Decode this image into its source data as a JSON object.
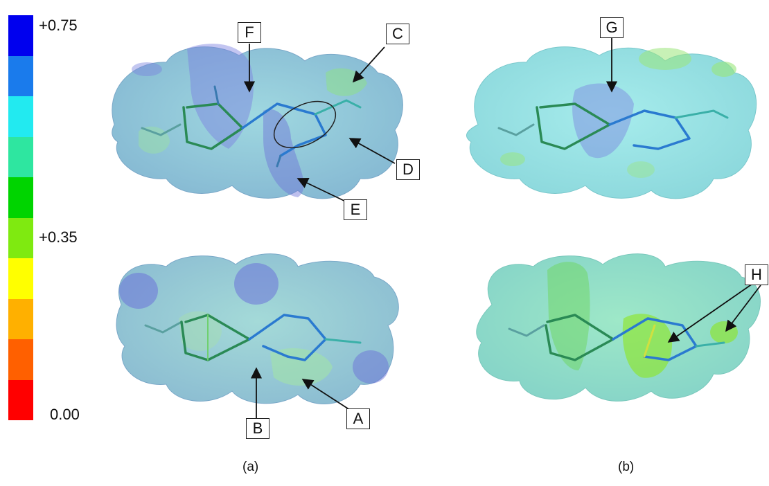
{
  "color_scale": {
    "max_label": "+0.75",
    "mid_label": "+0.35",
    "min_label": "0.00",
    "colors": [
      "#0000ee",
      "#1a7bec",
      "#22eaf0",
      "#2ee6a0",
      "#00d400",
      "#7fea10",
      "#ffff00",
      "#ffb000",
      "#ff6000",
      "#ff0000"
    ]
  },
  "panels": [
    {
      "id": "a",
      "caption": "(a)"
    },
    {
      "id": "b",
      "caption": "(b)"
    }
  ],
  "callouts": [
    "A",
    "B",
    "C",
    "D",
    "E",
    "F",
    "G",
    "H"
  ]
}
